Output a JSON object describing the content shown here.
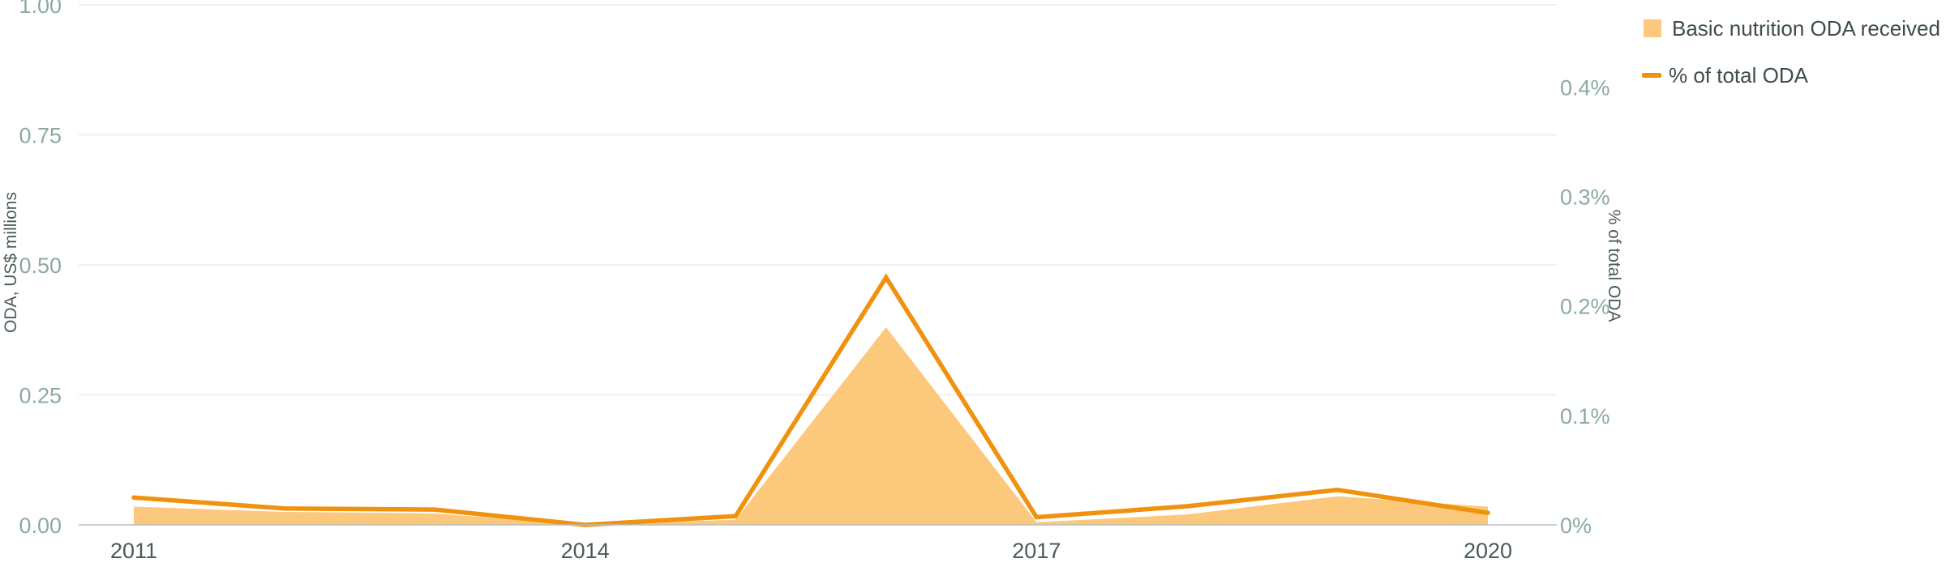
{
  "chart_data": {
    "type": "area+line",
    "x": [
      2011,
      2012,
      2013,
      2014,
      2015,
      2016,
      2017,
      2018,
      2019,
      2020
    ],
    "x_tick_labels": [
      "2011",
      "2014",
      "2017",
      "2020"
    ],
    "x_tick_values": [
      2011,
      2014,
      2017,
      2020
    ],
    "series": [
      {
        "name": "Basic nutrition ODA received",
        "kind": "area",
        "axis": "left",
        "color": "#fcc87b",
        "values": [
          0.035,
          0.025,
          0.022,
          0.0,
          0.01,
          0.38,
          0.005,
          0.02,
          0.055,
          0.035
        ]
      },
      {
        "name": "% of total ODA",
        "kind": "line",
        "axis": "right",
        "color": "#f0920e",
        "values": [
          0.025,
          0.015,
          0.014,
          0.0,
          0.008,
          0.226,
          0.007,
          0.017,
          0.032,
          0.011
        ]
      }
    ],
    "left_axis": {
      "title": "ODA, US$ millions",
      "range": [
        0,
        1
      ],
      "ticks": [
        0,
        0.25,
        0.5,
        0.75,
        1
      ],
      "tick_labels": [
        "0.00",
        "0.25",
        "0.50",
        "0.75",
        "1.00"
      ]
    },
    "right_axis": {
      "title": "% of total ODA",
      "range": [
        0,
        0.475
      ],
      "ticks": [
        0,
        0.1,
        0.2,
        0.3,
        0.4
      ],
      "tick_labels": [
        "0%",
        "0.1%",
        "0.2%",
        "0.3%",
        "0.4%"
      ]
    },
    "grid": true,
    "legend_position": "top-right",
    "colors": {
      "grid": "#ececec",
      "baseline": "#b8bfbf",
      "tick_text": "#8bab9b",
      "label_text": "#4a5a5a"
    }
  }
}
